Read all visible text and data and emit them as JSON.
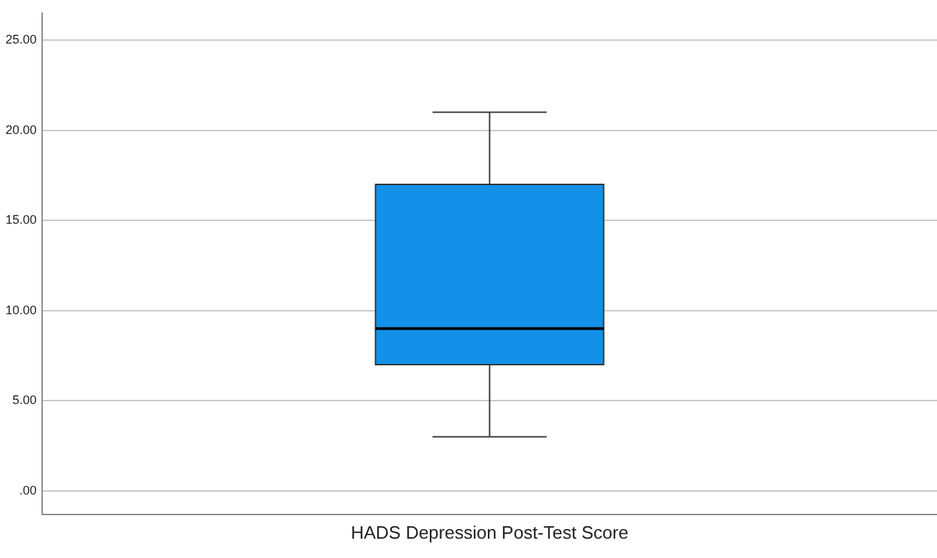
{
  "chart_data": {
    "type": "box",
    "categories": [
      "HADS Depression Post-Test Score"
    ],
    "boxes": [
      {
        "low": 3,
        "q1": 7,
        "median": 9,
        "q3": 17,
        "high": 21
      }
    ],
    "color": "#1390e8",
    "ylim": [
      -1.3,
      26.5
    ],
    "yticks": [
      {
        "value": 0,
        "label": ".00"
      },
      {
        "value": 5,
        "label": "5.00"
      },
      {
        "value": 10,
        "label": "10.00"
      },
      {
        "value": 15,
        "label": "15.00"
      },
      {
        "value": 20,
        "label": "20.00"
      },
      {
        "value": 25,
        "label": "25.00"
      }
    ],
    "grid": "y",
    "legend": false
  }
}
